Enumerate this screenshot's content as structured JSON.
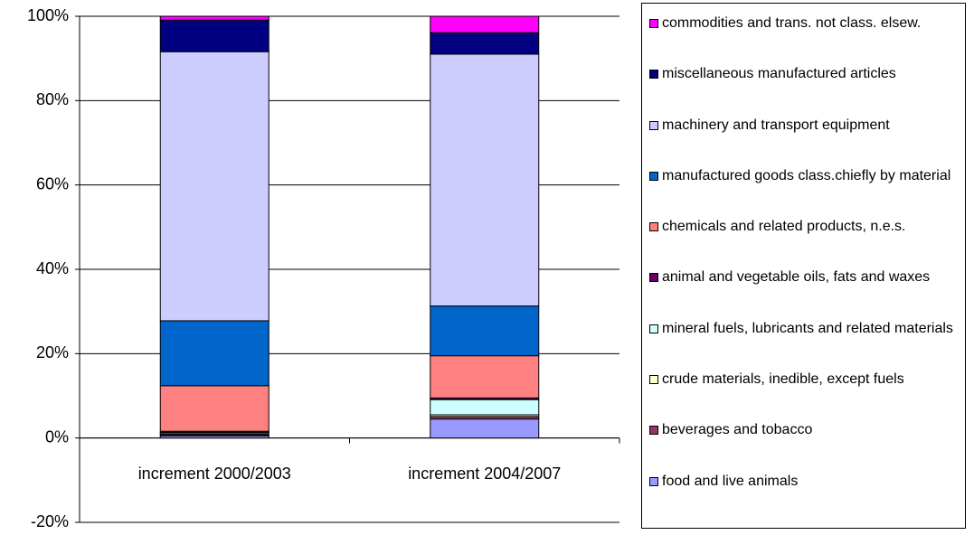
{
  "chart_data": {
    "type": "stacked_bar",
    "categories": [
      "increment 2000/2003",
      "increment 2004/2007"
    ],
    "series": [
      {
        "name": "food and live animals",
        "color": "#9999ff",
        "values": [
          0.5,
          4.5
        ]
      },
      {
        "name": "beverages and tobacco",
        "color": "#993366",
        "values": [
          0.3,
          0.6
        ]
      },
      {
        "name": "crude materials, inedible, except fuels",
        "color": "#ffffcc",
        "values": [
          0.2,
          0.4
        ]
      },
      {
        "name": "mineral fuels, lubricants and related materials",
        "color": "#ccffff",
        "values": [
          0.3,
          3.6
        ]
      },
      {
        "name": "animal and vegetable oils, fats and waxes",
        "color": "#660066",
        "values": [
          0.3,
          0.4
        ]
      },
      {
        "name": "chemicals and related products, n.e.s.",
        "color": "#ff8080",
        "values": [
          10.8,
          10.0
        ]
      },
      {
        "name": "manufactured goods class.chiefly by material",
        "color": "#0066cc",
        "values": [
          15.4,
          11.8
        ]
      },
      {
        "name": "machinery and transport equipment",
        "color": "#ccccff",
        "values": [
          63.8,
          59.7
        ]
      },
      {
        "name": "miscellaneous manufactured articles",
        "color": "#000080",
        "values": [
          7.5,
          5.1
        ]
      },
      {
        "name": "commodities and trans. not class. elsew.",
        "color": "#ff00ff",
        "values": [
          0.9,
          3.9
        ]
      }
    ],
    "ylim": [
      -20,
      100
    ],
    "yticks": [
      {
        "value": -20,
        "label": "-20%"
      },
      {
        "value": 0,
        "label": "0%"
      },
      {
        "value": 20,
        "label": "20%"
      },
      {
        "value": 40,
        "label": "40%"
      },
      {
        "value": 60,
        "label": "60%"
      },
      {
        "value": 80,
        "label": "80%"
      },
      {
        "value": 100,
        "label": "100%"
      }
    ],
    "grid": true
  }
}
